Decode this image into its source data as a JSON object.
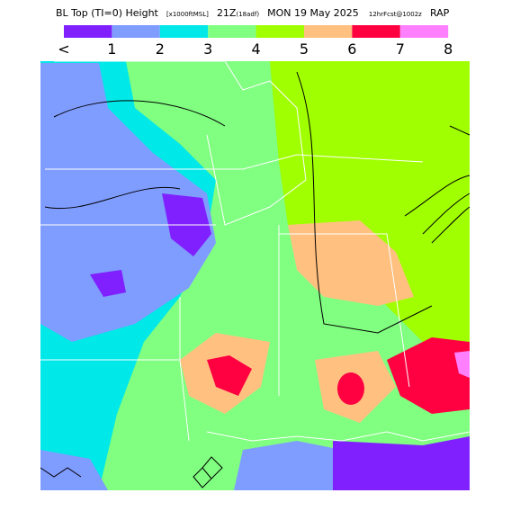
{
  "header": {
    "product": "BL Top (TI=0) Height",
    "units": "[x1000ftMSL]",
    "valid_time": "21Z",
    "offset": "(18adf)",
    "date": "MON 19 May 2025",
    "forecast": "12hrFcst@1002z",
    "model": "RAP"
  },
  "legend": {
    "labels": [
      "<",
      "1",
      "2",
      "3",
      "4",
      "5",
      "6",
      "7",
      "8"
    ],
    "colors": [
      "#8020ff",
      "#7f9cff",
      "#00e8e8",
      "#80ff80",
      "#a0ff00",
      "#ffc080",
      "#ff0040",
      "#ff80ff"
    ]
  }
}
